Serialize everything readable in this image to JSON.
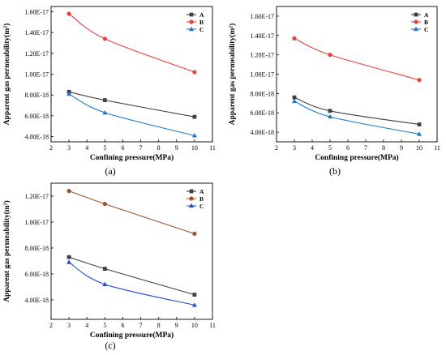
{
  "figure": {
    "panels": [
      "(a)",
      "(b)",
      "(c)"
    ]
  },
  "chart_data": [
    {
      "type": "line",
      "panel_label": "(a)",
      "xlabel": "Confining pressure(MPa)",
      "ylabel": "Apparent gas permeability(m²)",
      "xlim": [
        2,
        11
      ],
      "ylim": [
        3.5e-18,
        1.65e-17
      ],
      "xticks": [
        "2",
        "3",
        "4",
        "5",
        "6",
        "7",
        "8",
        "9",
        "10",
        "11"
      ],
      "yticks": [
        {
          "value": 4e-18,
          "label": "4.00E-18"
        },
        {
          "value": 6e-18,
          "label": "6.00E-18"
        },
        {
          "value": 8e-18,
          "label": "8.00E-18"
        },
        {
          "value": 1e-17,
          "label": "1.00E-17"
        },
        {
          "value": 1.2e-17,
          "label": "1.20E-17"
        },
        {
          "value": 1.4e-17,
          "label": "1.40E-17"
        },
        {
          "value": 1.6e-17,
          "label": "1.60E-17"
        }
      ],
      "x": [
        3,
        5,
        10
      ],
      "series": [
        {
          "name": "A",
          "color": "#404040",
          "marker": "square",
          "values": [
            8.3e-18,
            7.5e-18,
            5.9e-18
          ]
        },
        {
          "name": "B",
          "color": "#e8413e",
          "marker": "circle",
          "values": [
            1.58e-17,
            1.34e-17,
            1.02e-17
          ]
        },
        {
          "name": "C",
          "color": "#1f77c8",
          "marker": "triangle",
          "values": [
            8.1e-18,
            6.3e-18,
            4.1e-18
          ]
        }
      ],
      "legend": "top-right",
      "grid": false
    },
    {
      "type": "line",
      "panel_label": "(b)",
      "xlabel": "Confining pressure(MPa)",
      "ylabel": "Apparent gas permeability(m²)",
      "xlim": [
        2,
        11
      ],
      "ylim": [
        3e-18,
        1.7e-17
      ],
      "xticks": [
        "2",
        "3",
        "4",
        "5",
        "6",
        "7",
        "8",
        "9",
        "10",
        "11"
      ],
      "yticks": [
        {
          "value": 4e-18,
          "label": "4.00E-18"
        },
        {
          "value": 6e-18,
          "label": "6.00E-18"
        },
        {
          "value": 8e-18,
          "label": "8.00E-18"
        },
        {
          "value": 1e-17,
          "label": "1.00E-17"
        },
        {
          "value": 1.2e-17,
          "label": "1.20E-17"
        },
        {
          "value": 1.4e-17,
          "label": "1.40E-17"
        },
        {
          "value": 1.6e-17,
          "label": "1.60E-17"
        }
      ],
      "x": [
        3,
        5,
        10
      ],
      "series": [
        {
          "name": "A",
          "color": "#404040",
          "marker": "square",
          "values": [
            7.6e-18,
            6.2e-18,
            4.8e-18
          ]
        },
        {
          "name": "B",
          "color": "#e8413e",
          "marker": "circle",
          "values": [
            1.37e-17,
            1.2e-17,
            9.4e-18
          ]
        },
        {
          "name": "C",
          "color": "#1f77c8",
          "marker": "triangle",
          "values": [
            7.2e-18,
            5.6e-18,
            3.8e-18
          ]
        }
      ],
      "legend": "top-right",
      "grid": false
    },
    {
      "type": "line",
      "panel_label": "(c)",
      "xlabel": "Confining pressure(MPa)",
      "ylabel": "Apparent gas permeability(m²)",
      "xlim": [
        2,
        11
      ],
      "ylim": [
        2.5e-18,
        1.3e-17
      ],
      "xticks": [
        "2",
        "3",
        "4",
        "5",
        "6",
        "7",
        "8",
        "9",
        "10",
        "11"
      ],
      "yticks": [
        {
          "value": 4e-18,
          "label": "4.00E-18"
        },
        {
          "value": 6e-18,
          "label": "6.00E-18"
        },
        {
          "value": 8e-18,
          "label": "8.00E-18"
        },
        {
          "value": 1e-17,
          "label": "1.00E-17"
        },
        {
          "value": 1.2e-17,
          "label": "1.20E-17"
        }
      ],
      "x": [
        3,
        5,
        10
      ],
      "series": [
        {
          "name": "A",
          "color": "#404040",
          "marker": "square",
          "values": [
            7.3e-18,
            6.4e-18,
            4.4e-18
          ]
        },
        {
          "name": "B",
          "color": "#a0522d",
          "marker": "circle",
          "values": [
            1.24e-17,
            1.14e-17,
            9.1e-18
          ]
        },
        {
          "name": "C",
          "color": "#1f4fc8",
          "marker": "triangle",
          "values": [
            6.9e-18,
            5.2e-18,
            3.6e-18
          ]
        }
      ],
      "legend": "top-right",
      "grid": false
    }
  ]
}
